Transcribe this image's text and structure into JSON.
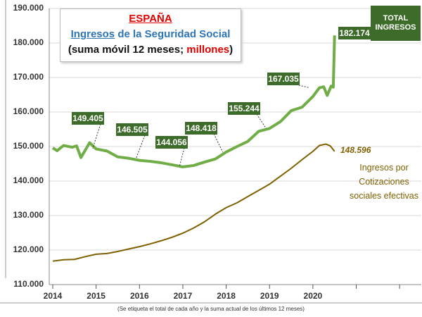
{
  "chart_data": {
    "type": "line",
    "title_lines": [
      [
        {
          "text": "ESPAÑA",
          "color": "#e00000",
          "underline": true
        }
      ],
      [
        {
          "text": "Ingresos",
          "color": "#2e75b6",
          "underline": true
        },
        {
          "text": " de la Seguridad Social",
          "color": "#2e75b6",
          "underline": false
        }
      ],
      [
        {
          "text": "(suma móvil 12 meses; ",
          "color": "#111111",
          "underline": false
        },
        {
          "text": "millones",
          "color": "#e00000",
          "underline": false
        },
        {
          "text": ")",
          "color": "#111111",
          "underline": false
        }
      ]
    ],
    "footnote": "(Se etiqueta el total de cada año y la suma actual de los últimos 12 meses)",
    "series": [
      {
        "name": "TOTAL INGRESOS",
        "color": "#70ad47",
        "width": 4,
        "x": [
          2014,
          2014.1,
          2014.25,
          2014.45,
          2014.55,
          2014.65,
          2014.85,
          2015,
          2015.25,
          2015.5,
          2015.75,
          2016,
          2016.25,
          2016.5,
          2016.75,
          2017,
          2017.25,
          2017.5,
          2017.75,
          2018,
          2018.25,
          2018.5,
          2018.75,
          2019,
          2019.25,
          2019.5,
          2019.75,
          2020,
          2020.15,
          2020.25,
          2020.33,
          2020.42,
          2020.47,
          2020.5
        ],
        "values": [
          149600,
          148800,
          150300,
          149800,
          150200,
          146800,
          151100,
          149300,
          148700,
          147000,
          146600,
          146000,
          145700,
          145300,
          144700,
          144100,
          144500,
          145500,
          146400,
          148400,
          150000,
          151500,
          154400,
          155244,
          157200,
          160400,
          161400,
          164500,
          167035,
          167300,
          164800,
          167500,
          167200,
          182174
        ],
        "annotations": [
          {
            "x": 2014.92,
            "value": 149405,
            "label": "149.405"
          },
          {
            "x": 2015.92,
            "value": 146505,
            "label": "146.505"
          },
          {
            "x": 2016.92,
            "value": 144056,
            "label": "144.056"
          },
          {
            "x": 2017.92,
            "value": 148418,
            "label": "148.418"
          },
          {
            "x": 2018.92,
            "value": 155244,
            "label": "155.244"
          },
          {
            "x": 2019.92,
            "value": 167035,
            "label": "167.035"
          },
          {
            "x": 2020.5,
            "value": 182174,
            "label": "182.174"
          }
        ]
      },
      {
        "name": "Ingresos por Cotizaciones sociales efectivas",
        "color": "#7f6000",
        "width": 2,
        "x": [
          2014,
          2014.25,
          2014.5,
          2014.75,
          2015,
          2015.25,
          2015.5,
          2015.75,
          2016,
          2016.25,
          2016.5,
          2016.75,
          2017,
          2017.25,
          2017.5,
          2017.75,
          2018,
          2018.25,
          2018.5,
          2018.75,
          2019,
          2019.25,
          2019.5,
          2019.75,
          2020,
          2020.15,
          2020.3,
          2020.4,
          2020.5
        ],
        "values": [
          116800,
          117200,
          117300,
          118100,
          118800,
          119000,
          119600,
          120300,
          121000,
          121800,
          122700,
          123700,
          124900,
          126400,
          128200,
          130400,
          132300,
          133700,
          135500,
          137300,
          139100,
          141400,
          143700,
          146200,
          148600,
          150300,
          150700,
          150200,
          148596
        ],
        "annotations": [
          {
            "x": 2020.5,
            "value": 148596,
            "label": "148.596"
          }
        ]
      }
    ],
    "xlim": [
      2014,
      2022.5
    ],
    "xticks": [
      2014,
      2015,
      2016,
      2017,
      2018,
      2019,
      2020
    ],
    "xminor": [
      2021,
      2022
    ],
    "ylim": [
      110000,
      190000
    ],
    "yticks": [
      {
        "value": 110000,
        "label": "110.000"
      },
      {
        "value": 120000,
        "label": "120.000"
      },
      {
        "value": 130000,
        "label": "130.000"
      },
      {
        "value": 140000,
        "label": "140.000"
      },
      {
        "value": 150000,
        "label": "150.000"
      },
      {
        "value": 160000,
        "label": "160.000"
      },
      {
        "value": 170000,
        "label": "170.000"
      },
      {
        "value": 180000,
        "label": "180.000"
      },
      {
        "value": 190000,
        "label": "190.000"
      }
    ],
    "grid": true
  }
}
